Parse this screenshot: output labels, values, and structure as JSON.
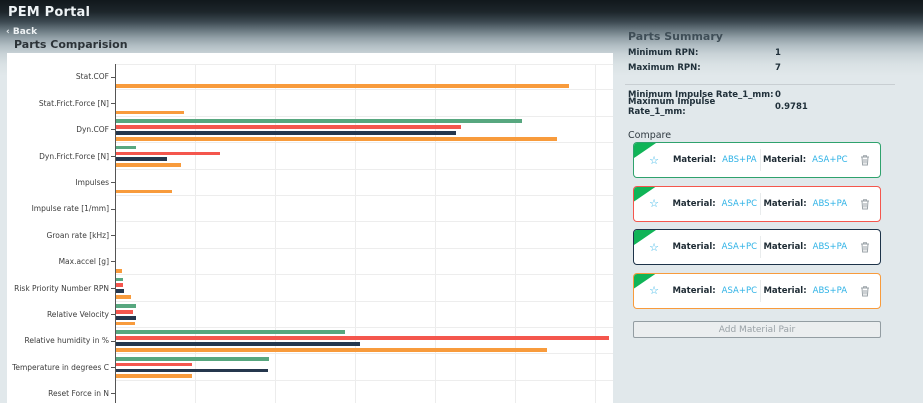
{
  "header": {
    "app_title": "PEM Portal",
    "back_label": "‹ Back",
    "page_title": "Parts Comparision"
  },
  "chart_data": {
    "type": "bar",
    "orientation": "horizontal",
    "title": "",
    "xlabel": "",
    "ylabel": "",
    "categories": [
      "Stat.COF",
      "Stat.Frict.Force [N]",
      "Dyn.COF",
      "Dyn.Frict.Force [N]",
      "Impulses",
      "Impulse rate [1/mm]",
      "Groan rate [kHz]",
      "Max.accel [g]",
      "Risk Priority Number RPN",
      "Relative Velocity",
      "Relative humidity in %",
      "Temperature in degrees C",
      "Reset Force in N"
    ],
    "series": [
      {
        "id": "green",
        "name": "series-green",
        "color": "#57a77f",
        "values": [
          0,
          0,
          50.6,
          2.5,
          0,
          0,
          0,
          0,
          0.9,
          2.5,
          28.6,
          19.1,
          0
        ]
      },
      {
        "id": "red",
        "name": "series-red",
        "color": "#f4564d",
        "values": [
          0,
          0,
          43.0,
          13.0,
          0,
          0,
          0,
          0,
          0.9,
          2.1,
          61.5,
          9.5,
          0
        ]
      },
      {
        "id": "navy",
        "name": "series-navy",
        "color": "#25374d",
        "values": [
          0,
          0,
          42.4,
          6.4,
          0,
          0,
          0,
          0,
          1.0,
          2.5,
          30.5,
          18.9,
          0
        ]
      },
      {
        "id": "orange",
        "name": "series-orange",
        "color": "#f89b3c",
        "values": [
          56.5,
          8.5,
          55.0,
          8.1,
          7.0,
          0,
          0,
          0.8,
          1.9,
          2.4,
          53.8,
          9.5,
          0
        ]
      }
    ],
    "xlim": [
      0,
      62
    ],
    "gridline_interval": 10,
    "grid": true,
    "x_tick_labels_visible": false,
    "legend_position": "none"
  },
  "summary": {
    "title": "Parts Summary",
    "stats": [
      {
        "label": "Minimum RPN:",
        "value": "1"
      },
      {
        "label": "Maximum RPN:",
        "value": "7"
      }
    ],
    "stats2": [
      {
        "label": "Minimum Impulse Rate_1_mm:",
        "value": "0"
      },
      {
        "label": "Maximum Impulse Rate_1_mm:",
        "value": "0.9781"
      }
    ],
    "compare_label": "Compare",
    "cards": [
      {
        "border_color": "#2fa26d",
        "corner_color": "#10b457",
        "star_icon": "star-outline",
        "trash_icon": "trash",
        "materials": [
          {
            "label": "Material:",
            "value": "ABS+PA"
          },
          {
            "label": "Material:",
            "value": "ASA+PC"
          }
        ]
      },
      {
        "border_color": "#f4564d",
        "corner_color": "#10b457",
        "star_icon": "star-outline",
        "trash_icon": "trash",
        "materials": [
          {
            "label": "Material:",
            "value": "ASA+PC"
          },
          {
            "label": "Material:",
            "value": "ABS+PA"
          }
        ]
      },
      {
        "border_color": "#1d3349",
        "corner_color": "#10b457",
        "star_icon": "star-outline",
        "trash_icon": "trash",
        "materials": [
          {
            "label": "Material:",
            "value": "ASA+PC"
          },
          {
            "label": "Material:",
            "value": "ABS+PA"
          }
        ]
      },
      {
        "border_color": "#f89b3c",
        "corner_color": "#10b457",
        "star_icon": "star-outline",
        "trash_icon": "trash",
        "materials": [
          {
            "label": "Material:",
            "value": "ASA+PC"
          },
          {
            "label": "Material:",
            "value": "ABS+PA"
          }
        ]
      }
    ],
    "add_button_label": "Add Material Pair"
  },
  "colors": {
    "accent_link": "#2eb2e6",
    "card_corner_green": "#10b457",
    "series_green": "#57a77f",
    "series_red": "#f4564d",
    "series_navy": "#25374d",
    "series_orange": "#f89b3c",
    "page_background_light": "#e1e8eb",
    "header_dark": "#11181c"
  }
}
